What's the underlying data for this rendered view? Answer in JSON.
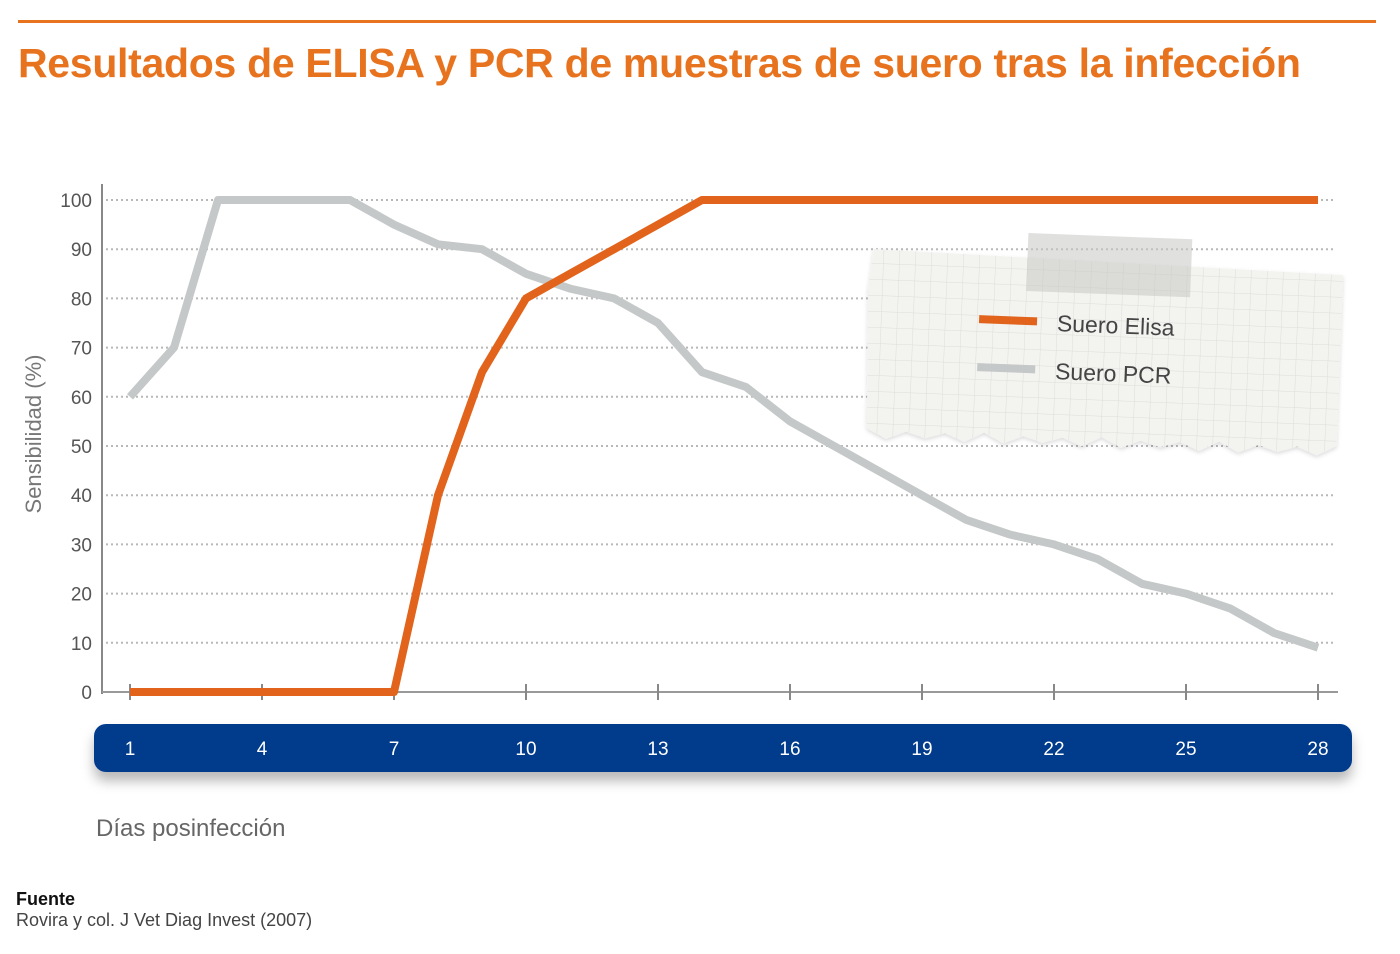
{
  "title": "Resultados de ELISA y PCR de muestras de suero tras la infección",
  "colors": {
    "accent": "#e8731f",
    "elisa": "#e2641c",
    "pcr": "#c5c8c8",
    "axis_band": "#063a8c"
  },
  "chart_data": {
    "type": "line",
    "title": "Resultados de ELISA y PCR de muestras de suero tras la infección",
    "xlabel": "Días posinfección",
    "ylabel": "Sensibilidad (%)",
    "xlim": [
      1,
      28
    ],
    "ylim": [
      0,
      100
    ],
    "y_ticks": [
      "0",
      "10",
      "20",
      "30",
      "40",
      "50",
      "60",
      "70",
      "80",
      "90",
      "100"
    ],
    "x_ticks": [
      "1",
      "4",
      "7",
      "10",
      "13",
      "16",
      "19",
      "22",
      "25",
      "28"
    ],
    "grid": "horizontal dotted",
    "legend_position": "top-right",
    "series": [
      {
        "name": "Suero Elisa",
        "color": "#e2641c",
        "x": [
          1,
          2,
          3,
          4,
          5,
          6,
          7,
          8,
          9,
          10,
          11,
          12,
          13,
          14,
          15,
          16,
          17,
          18,
          19,
          20,
          21,
          22,
          23,
          24,
          25,
          26,
          27,
          28
        ],
        "y": [
          0,
          0,
          0,
          0,
          0,
          0,
          0,
          40,
          65,
          80,
          85,
          90,
          95,
          100,
          100,
          100,
          100,
          100,
          100,
          100,
          100,
          100,
          100,
          100,
          100,
          100,
          100,
          100
        ]
      },
      {
        "name": "Suero PCR",
        "color": "#c5c8c8",
        "x": [
          1,
          2,
          3,
          4,
          5,
          6,
          7,
          8,
          9,
          10,
          11,
          12,
          13,
          14,
          15,
          16,
          17,
          18,
          19,
          20,
          21,
          22,
          23,
          24,
          25,
          26,
          27,
          28
        ],
        "y": [
          60,
          70,
          100,
          100,
          100,
          100,
          95,
          91,
          90,
          85,
          82,
          80,
          75,
          65,
          62,
          55,
          50,
          45,
          40,
          35,
          32,
          30,
          27,
          22,
          20,
          17,
          12,
          9
        ]
      }
    ]
  },
  "source": {
    "label": "Fuente",
    "text": "Rovira y col. J Vet Diag Invest (2007)"
  }
}
